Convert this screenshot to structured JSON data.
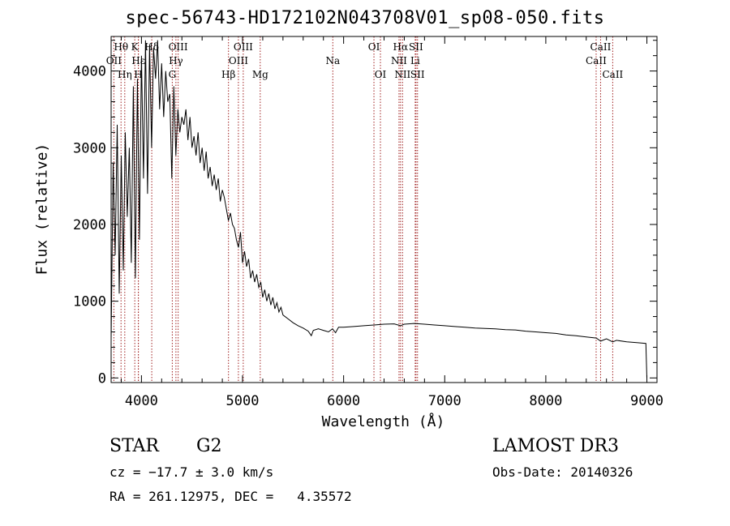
{
  "chart_data": {
    "type": "line",
    "title": "spec-56743-HD172102N043708V01_sp08-050.fits",
    "xlabel": "Wavelength (Å)",
    "ylabel": "Flux (relative)",
    "xlim": [
      3700,
      9100
    ],
    "ylim": [
      -60,
      4450
    ],
    "x_ticks": [
      4000,
      5000,
      6000,
      7000,
      8000,
      9000
    ],
    "x_tick_labels": [
      "4000",
      "5000",
      "6000",
      "7000",
      "8000",
      "9000"
    ],
    "y_ticks": [
      0,
      1000,
      2000,
      3000,
      4000
    ],
    "y_tick_labels": [
      "0",
      "1000",
      "2000",
      "3000",
      "4000"
    ],
    "grid": false,
    "series": [
      {
        "name": "flux",
        "x": [
          3700,
          3720,
          3740,
          3760,
          3780,
          3800,
          3820,
          3840,
          3860,
          3880,
          3900,
          3920,
          3940,
          3960,
          3980,
          4000,
          4020,
          4040,
          4060,
          4080,
          4100,
          4120,
          4140,
          4160,
          4180,
          4200,
          4220,
          4240,
          4260,
          4280,
          4300,
          4320,
          4340,
          4360,
          4380,
          4400,
          4420,
          4440,
          4460,
          4480,
          4500,
          4520,
          4540,
          4560,
          4580,
          4600,
          4620,
          4640,
          4660,
          4680,
          4700,
          4720,
          4740,
          4760,
          4780,
          4800,
          4820,
          4840,
          4860,
          4880,
          4900,
          4920,
          4940,
          4960,
          4980,
          5000,
          5020,
          5040,
          5060,
          5080,
          5100,
          5120,
          5140,
          5160,
          5180,
          5200,
          5220,
          5240,
          5260,
          5280,
          5300,
          5320,
          5340,
          5360,
          5380,
          5400,
          5450,
          5500,
          5550,
          5600,
          5650,
          5680,
          5700,
          5750,
          5800,
          5850,
          5890,
          5920,
          5950,
          6000,
          6100,
          6200,
          6300,
          6400,
          6500,
          6563,
          6600,
          6700,
          6800,
          6900,
          7000,
          7100,
          7200,
          7300,
          7400,
          7500,
          7600,
          7700,
          7800,
          7900,
          8000,
          8100,
          8200,
          8300,
          8400,
          8500,
          8542,
          8600,
          8662,
          8700,
          8800,
          8900,
          8990,
          9000
        ],
        "y": [
          500,
          2800,
          1600,
          3300,
          1100,
          2900,
          1400,
          3200,
          2100,
          3000,
          1500,
          3800,
          1300,
          3900,
          1800,
          4200,
          2600,
          4400,
          2400,
          4350,
          3000,
          4300,
          3900,
          4400,
          3500,
          4100,
          3400,
          4000,
          3600,
          3700,
          2600,
          3800,
          2900,
          3500,
          3200,
          3400,
          3300,
          3500,
          3100,
          3400,
          3000,
          3150,
          2900,
          3200,
          2800,
          3000,
          2700,
          2950,
          2600,
          2750,
          2500,
          2650,
          2450,
          2600,
          2300,
          2450,
          2350,
          2200,
          2050,
          2150,
          2000,
          1950,
          1800,
          1700,
          1900,
          1500,
          1650,
          1450,
          1550,
          1300,
          1400,
          1250,
          1350,
          1180,
          1250,
          1050,
          1150,
          1000,
          1100,
          950,
          1050,
          900,
          980,
          860,
          920,
          820,
          770,
          720,
          680,
          650,
          610,
          550,
          620,
          640,
          620,
          600,
          640,
          590,
          660,
          660,
          670,
          680,
          690,
          700,
          705,
          680,
          700,
          710,
          700,
          690,
          680,
          670,
          660,
          650,
          645,
          640,
          630,
          625,
          610,
          600,
          590,
          580,
          560,
          550,
          535,
          520,
          480,
          510,
          470,
          490,
          470,
          460,
          450,
          0
        ]
      }
    ],
    "line_markers": [
      {
        "name": "OII",
        "x": 3727,
        "row": 2
      },
      {
        "name": "Hθ",
        "x": 3798,
        "row": 1
      },
      {
        "name": "Hη",
        "x": 3835,
        "row": 3
      },
      {
        "name": "K",
        "x": 3934,
        "row": 1
      },
      {
        "name": "Hε",
        "x": 3970,
        "row": 2
      },
      {
        "name": "H",
        "x": 3969,
        "row": 3
      },
      {
        "name": "Hδ",
        "x": 4102,
        "row": 1
      },
      {
        "name": "OIII",
        "x": 4363,
        "row": 1
      },
      {
        "name": "Hγ",
        "x": 4341,
        "row": 2
      },
      {
        "name": "G",
        "x": 4305,
        "row": 3
      },
      {
        "name": "OIII",
        "x": 5007,
        "row": 1
      },
      {
        "name": "OIII",
        "x": 4959,
        "row": 2
      },
      {
        "name": "Hβ",
        "x": 4861,
        "row": 3
      },
      {
        "name": "Mg",
        "x": 5175,
        "row": 3
      },
      {
        "name": "Na",
        "x": 5893,
        "row": 2
      },
      {
        "name": "OI",
        "x": 6300,
        "row": 1
      },
      {
        "name": "OI",
        "x": 6364,
        "row": 3
      },
      {
        "name": "Hα",
        "x": 6563,
        "row": 1
      },
      {
        "name": "NII",
        "x": 6548,
        "row": 2
      },
      {
        "name": "NII",
        "x": 6583,
        "row": 3
      },
      {
        "name": "SII",
        "x": 6716,
        "row": 1
      },
      {
        "name": "Li",
        "x": 6708,
        "row": 2
      },
      {
        "name": "SII",
        "x": 6731,
        "row": 3
      },
      {
        "name": "CaII",
        "x": 8542,
        "row": 1
      },
      {
        "name": "CaII",
        "x": 8498,
        "row": 2
      },
      {
        "name": "CaII",
        "x": 8662,
        "row": 3
      }
    ]
  },
  "info": {
    "object_class": "STAR",
    "subclass": "G2",
    "survey": "LAMOST DR3",
    "redshift": "cz = −17.7 ± 3.0 km/s",
    "obs_date": "Obs-Date: 20140326",
    "coords": "RA = 261.12975, DEC =   4.35572"
  },
  "colors": {
    "line": "#000000",
    "marker": "#a02020",
    "text": "#000000"
  }
}
